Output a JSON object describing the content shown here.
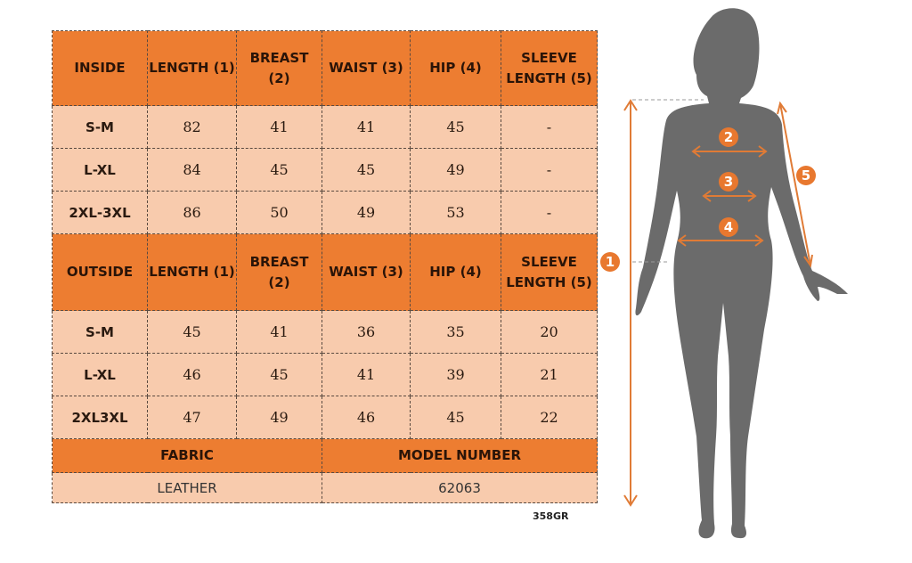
{
  "inside": {
    "header": [
      "INSIDE",
      "LENGTH (1)",
      "BREAST (2)",
      "WAIST (3)",
      "HIP (4)",
      "SLEEVE LENGTH (5)"
    ],
    "rows": [
      [
        "S-M",
        "82",
        "41",
        "41",
        "45",
        "-"
      ],
      [
        "L-XL",
        "84",
        "45",
        "45",
        "49",
        "-"
      ],
      [
        "2XL-3XL",
        "86",
        "50",
        "49",
        "53",
        "-"
      ]
    ]
  },
  "outside": {
    "header": [
      "OUTSIDE",
      "LENGTH (1)",
      "BREAST (2)",
      "WAIST (3)",
      "HIP (4)",
      "SLEEVE LENGTH (5)"
    ],
    "rows": [
      [
        "S-M",
        "45",
        "41",
        "36",
        "35",
        "20"
      ],
      [
        "L-XL",
        "46",
        "45",
        "41",
        "39",
        "21"
      ],
      [
        "2XL3XL",
        "47",
        "49",
        "46",
        "45",
        "22"
      ]
    ]
  },
  "footer": {
    "fabric_label": "FABRIC",
    "model_label": "MODEL NUMBER",
    "fabric": "LEATHER",
    "model": "62063"
  },
  "code": "358GR",
  "figure": {
    "markers": [
      "1",
      "2",
      "3",
      "4",
      "5"
    ]
  },
  "colors": {
    "header": "#ED7D31",
    "row": "#F8CBAD",
    "silhouette": "#6b6b6b"
  }
}
